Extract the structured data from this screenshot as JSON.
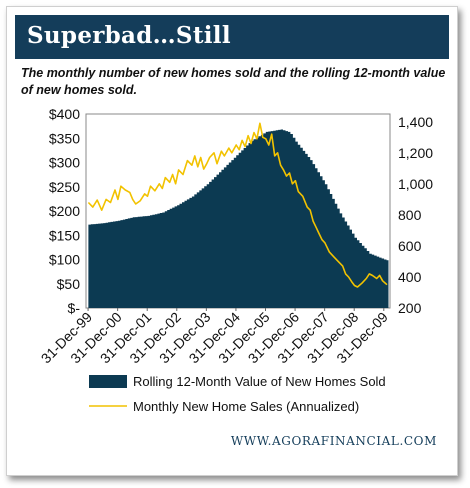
{
  "header": {
    "title": "Superbad…Still",
    "subtitle": "The monthly number of new homes sold and the rolling 12-month value of new homes sold."
  },
  "footer": {
    "source": "WWW.AGORAFINANCIAL.COM"
  },
  "colors": {
    "banner": "#143d5a",
    "area": "#0c3a52",
    "line": "#f2c200"
  },
  "chart_data": {
    "type": "area+line",
    "x_ticks": [
      "31-Dec-99",
      "31-Dec-00",
      "31-Dec-01",
      "31-Dec-02",
      "31-Dec-03",
      "31-Dec-04",
      "31-Dec-05",
      "31-Dec-06",
      "31-Dec-07",
      "31-Dec-08",
      "31-Dec-09"
    ],
    "x_range": [
      1999.92,
      2010.2
    ],
    "left_axis": {
      "ticks": [
        "$-",
        "$50",
        "$100",
        "$150",
        "$200",
        "$250",
        "$300",
        "$350",
        "$400"
      ],
      "range": [
        0,
        400
      ]
    },
    "right_axis": {
      "ticks": [
        "200",
        "400",
        "600",
        "800",
        "1,000",
        "1,200",
        "1,400"
      ],
      "range": [
        200,
        1450
      ]
    },
    "legend": [
      {
        "label": "Rolling 12-Month Value of New Homes Sold",
        "kind": "area"
      },
      {
        "label": "Monthly New Home Sales (Annualized)",
        "kind": "line"
      }
    ],
    "series": [
      {
        "name": "Rolling 12-Month Value of New Homes Sold",
        "axis": "left",
        "points": [
          [
            2000.0,
            172
          ],
          [
            2000.5,
            175
          ],
          [
            2001.0,
            180
          ],
          [
            2001.5,
            187
          ],
          [
            2002.0,
            190
          ],
          [
            2002.5,
            197
          ],
          [
            2003.0,
            212
          ],
          [
            2003.5,
            230
          ],
          [
            2004.0,
            255
          ],
          [
            2004.5,
            285
          ],
          [
            2005.0,
            315
          ],
          [
            2005.5,
            345
          ],
          [
            2006.0,
            363
          ],
          [
            2006.5,
            368
          ],
          [
            2006.8,
            362
          ],
          [
            2007.0,
            343
          ],
          [
            2007.5,
            305
          ],
          [
            2008.0,
            255
          ],
          [
            2008.5,
            195
          ],
          [
            2009.0,
            145
          ],
          [
            2009.5,
            112
          ],
          [
            2010.0,
            100
          ],
          [
            2010.15,
            97
          ]
        ]
      },
      {
        "name": "Monthly New Home Sales (Annualized)",
        "axis": "right",
        "points": [
          [
            2000.0,
            880
          ],
          [
            2000.15,
            850
          ],
          [
            2000.3,
            895
          ],
          [
            2000.45,
            830
          ],
          [
            2000.6,
            900
          ],
          [
            2000.75,
            880
          ],
          [
            2000.9,
            960
          ],
          [
            2001.0,
            900
          ],
          [
            2001.1,
            985
          ],
          [
            2001.25,
            960
          ],
          [
            2001.4,
            945
          ],
          [
            2001.5,
            900
          ],
          [
            2001.6,
            870
          ],
          [
            2001.75,
            890
          ],
          [
            2001.9,
            935
          ],
          [
            2002.0,
            920
          ],
          [
            2002.1,
            985
          ],
          [
            2002.25,
            955
          ],
          [
            2002.4,
            1000
          ],
          [
            2002.5,
            970
          ],
          [
            2002.6,
            1040
          ],
          [
            2002.75,
            1010
          ],
          [
            2002.85,
            1060
          ],
          [
            2002.95,
            1000
          ],
          [
            2003.05,
            1090
          ],
          [
            2003.2,
            1060
          ],
          [
            2003.35,
            1150
          ],
          [
            2003.5,
            1120
          ],
          [
            2003.6,
            1180
          ],
          [
            2003.7,
            1110
          ],
          [
            2003.8,
            1170
          ],
          [
            2003.9,
            1095
          ],
          [
            2004.0,
            1130
          ],
          [
            2004.1,
            1170
          ],
          [
            2004.25,
            1200
          ],
          [
            2004.35,
            1130
          ],
          [
            2004.5,
            1210
          ],
          [
            2004.6,
            1180
          ],
          [
            2004.75,
            1230
          ],
          [
            2004.85,
            1200
          ],
          [
            2005.0,
            1250
          ],
          [
            2005.1,
            1220
          ],
          [
            2005.2,
            1280
          ],
          [
            2005.3,
            1240
          ],
          [
            2005.4,
            1310
          ],
          [
            2005.5,
            1260
          ],
          [
            2005.6,
            1330
          ],
          [
            2005.7,
            1290
          ],
          [
            2005.8,
            1390
          ],
          [
            2005.9,
            1300
          ],
          [
            2006.0,
            1290
          ],
          [
            2006.1,
            1250
          ],
          [
            2006.2,
            1320
          ],
          [
            2006.3,
            1180
          ],
          [
            2006.4,
            1200
          ],
          [
            2006.5,
            1120
          ],
          [
            2006.6,
            1090
          ],
          [
            2006.7,
            1050
          ],
          [
            2006.8,
            1070
          ],
          [
            2006.9,
            1000
          ],
          [
            2007.0,
            1020
          ],
          [
            2007.1,
            950
          ],
          [
            2007.25,
            920
          ],
          [
            2007.4,
            850
          ],
          [
            2007.5,
            830
          ],
          [
            2007.6,
            760
          ],
          [
            2007.7,
            720
          ],
          [
            2007.8,
            680
          ],
          [
            2007.9,
            640
          ],
          [
            2008.0,
            620
          ],
          [
            2008.15,
            560
          ],
          [
            2008.3,
            530
          ],
          [
            2008.45,
            500
          ],
          [
            2008.6,
            470
          ],
          [
            2008.7,
            420
          ],
          [
            2008.8,
            400
          ],
          [
            2008.9,
            370
          ],
          [
            2009.0,
            345
          ],
          [
            2009.1,
            335
          ],
          [
            2009.25,
            360
          ],
          [
            2009.4,
            390
          ],
          [
            2009.5,
            420
          ],
          [
            2009.6,
            410
          ],
          [
            2009.75,
            390
          ],
          [
            2009.85,
            410
          ],
          [
            2009.95,
            375
          ],
          [
            2010.1,
            350
          ]
        ]
      }
    ]
  }
}
